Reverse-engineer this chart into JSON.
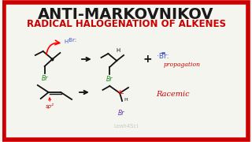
{
  "title1": "ANTI-MARKOVNIKOV",
  "title2": "RADICAL HALOGENATION OF ALKENES",
  "title1_color": "#1a1a1a",
  "title2_color": "#cc0000",
  "bg_color": "#f5f5f0",
  "border_color": "#cc0000",
  "watermark": "Leah4Sci",
  "propagation_text": "propagation",
  "racemic_text": "Racemic",
  "note_color": "#cc0000",
  "blue_color": "#4455cc",
  "green_color": "#228822",
  "dark_color": "#111111",
  "purple_color": "#6633aa"
}
